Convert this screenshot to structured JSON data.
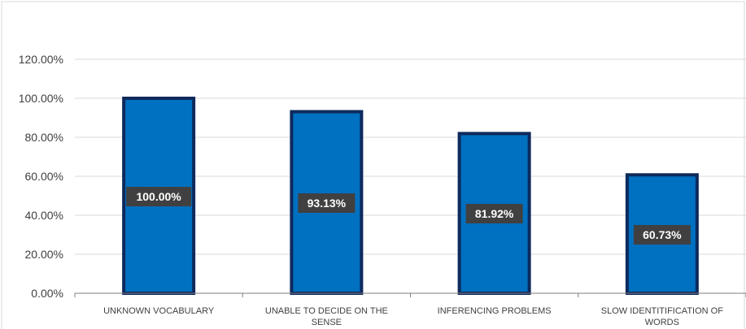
{
  "chart_data": {
    "type": "bar",
    "categories": [
      [
        "UNKNOWN VOCABULARY"
      ],
      [
        "UNABLE TO DECIDE ON THE",
        "SENSE"
      ],
      [
        "INFERENCING PROBLEMS"
      ],
      [
        "SLOW IDENTITIFICATION OF",
        "WORDS"
      ]
    ],
    "values": [
      100.0,
      93.13,
      81.92,
      60.73
    ],
    "data_labels": [
      "100.00%",
      "93.13%",
      "81.92%",
      "60.73%"
    ],
    "y_ticks": [
      "0.00%",
      "20.00%",
      "40.00%",
      "60.00%",
      "80.00%",
      "100.00%",
      "120.00%"
    ],
    "ylim": [
      0,
      120
    ],
    "title": "",
    "xlabel": "",
    "ylabel": "",
    "grid": true,
    "legend": "none",
    "colors": {
      "bar_fill": "#0070C0",
      "bar_outline": "#0E2A5C",
      "label_box": "#404040",
      "gridline": "#D9D9D9",
      "axis_line": "#7F7F7F",
      "frame": "#D9D9D9"
    }
  }
}
